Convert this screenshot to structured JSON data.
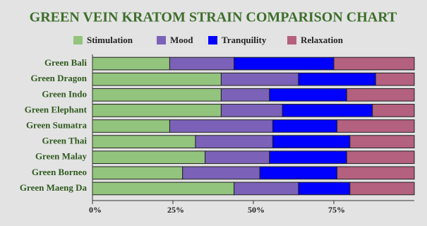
{
  "chart_data": {
    "type": "stacked-barh",
    "title": "GREEN VEIN KRATOM STRAIN COMPARISON CHART",
    "categories": [
      "Green Bali",
      "Green Dragon",
      "Green Indo",
      "Green Elephant",
      "Green Sumatra",
      "Green Thai",
      "Green Malay",
      "Green Borneo",
      "Green Maeng Da"
    ],
    "series": [
      {
        "name": "Stimulation",
        "color": "#93c47d",
        "values": [
          24,
          40,
          40,
          40,
          24,
          32,
          35,
          28,
          44
        ]
      },
      {
        "name": "Mood",
        "color": "#7b62b8",
        "values": [
          20,
          24,
          15,
          19,
          32,
          24,
          20,
          24,
          20
        ]
      },
      {
        "name": "Tranquility",
        "color": "#0000ff",
        "values": [
          31,
          24,
          24,
          28,
          20,
          24,
          24,
          24,
          16
        ]
      },
      {
        "name": "Relaxation",
        "color": "#b4607f",
        "values": [
          25,
          12,
          21,
          13,
          24,
          20,
          21,
          24,
          20
        ]
      }
    ],
    "xlim": [
      0,
      100
    ],
    "xticks": [
      {
        "value": 0,
        "label": "0%"
      },
      {
        "value": 25,
        "label": "25%"
      },
      {
        "value": 50,
        "label": "50%"
      },
      {
        "value": 75,
        "label": "75%"
      }
    ]
  }
}
